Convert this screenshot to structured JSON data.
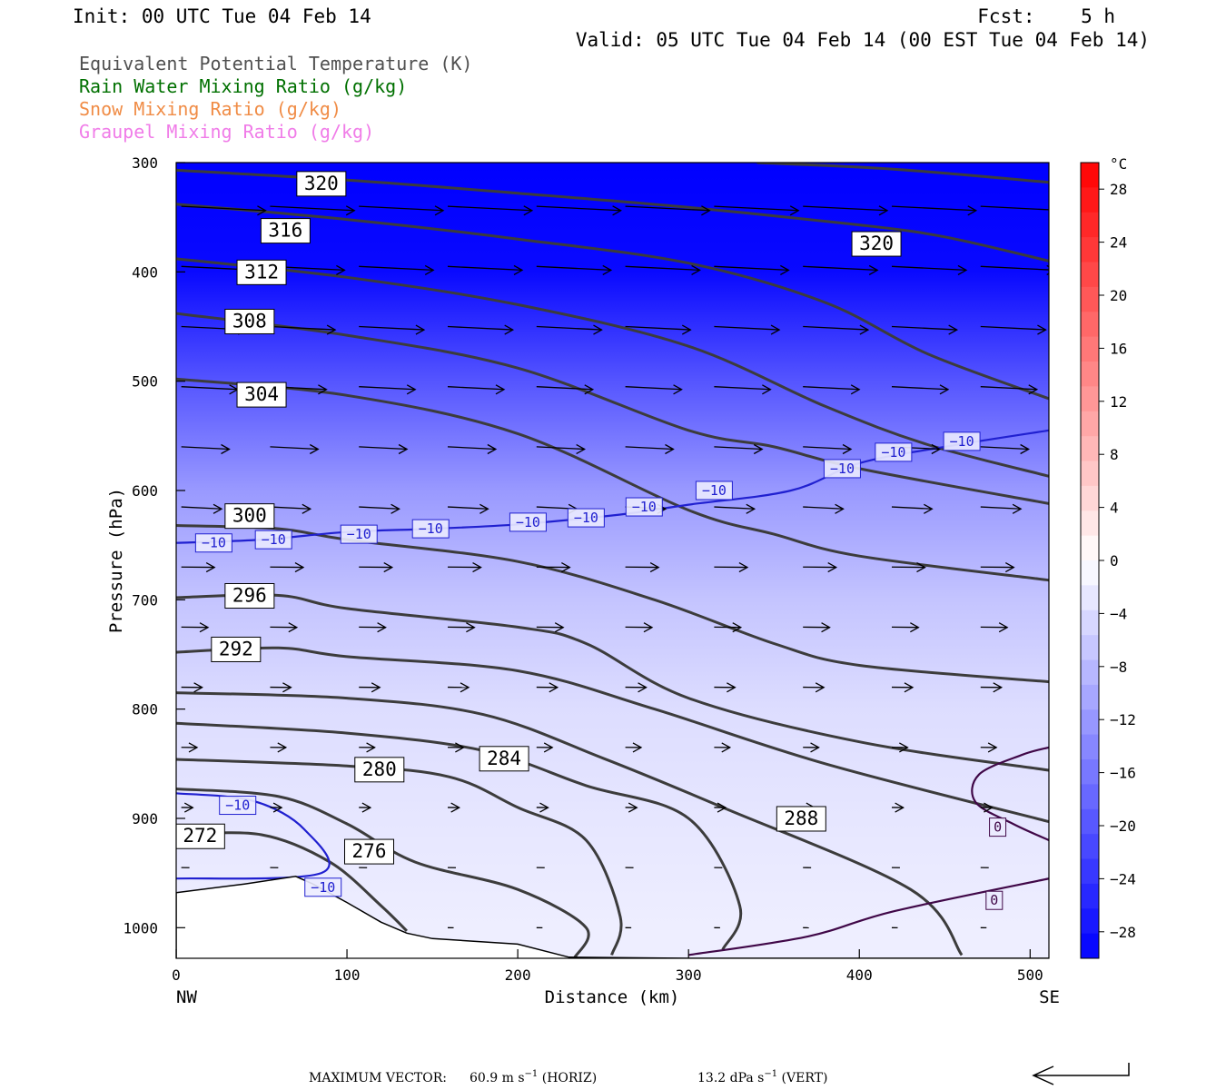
{
  "header": {
    "init": "Init: 00 UTC Tue 04 Feb 14",
    "fcst": "Fcst:    5 h",
    "valid": "Valid: 05 UTC Tue 04 Feb 14 (00 EST Tue 04 Feb 14)"
  },
  "legend": [
    {
      "label": "Equivalent Potential Temperature (K)",
      "color": "#505050"
    },
    {
      "label": "Rain Water Mixing Ratio (g/kg)",
      "color": "#007000"
    },
    {
      "label": "Snow Mixing Ratio (g/kg)",
      "color": "#f08c46"
    },
    {
      "label": "Graupel Mixing Ratio (g/kg)",
      "color": "#f07ce8"
    }
  ],
  "chart_data": {
    "type": "contour",
    "xlabel": "Distance (km)",
    "ylabel": "Pressure (hPa)",
    "xlim": [
      0,
      511
    ],
    "ylim": [
      1028,
      300
    ],
    "x_ticks": [
      0,
      100,
      200,
      300,
      400,
      500
    ],
    "y_ticks": [
      300,
      400,
      500,
      600,
      700,
      800,
      900,
      1000
    ],
    "x_end_labels": {
      "left": "NW",
      "right": "SE"
    },
    "colorbar": {
      "unit": "°C",
      "tick_values": [
        28,
        24,
        20,
        16,
        12,
        8,
        4,
        0,
        -4,
        -8,
        -12,
        -16,
        -20,
        -24,
        -28
      ],
      "tick_labels": [
        "28",
        "24",
        "20",
        "16",
        "12",
        "8",
        "4",
        "0",
        "−4",
        "−8",
        "−12",
        "−16",
        "−20",
        "−24",
        "−28"
      ]
    },
    "temperature_field": [
      {
        "p": 300,
        "t": -30
      },
      {
        "p": 400,
        "t": -29
      },
      {
        "p": 500,
        "t": -20
      },
      {
        "p": 600,
        "t": -12
      },
      {
        "p": 700,
        "t": -7
      },
      {
        "p": 800,
        "t": -4
      },
      {
        "p": 900,
        "t": -3
      },
      {
        "p": 1000,
        "t": -2
      }
    ],
    "theta_e_contours": [
      {
        "label": "320",
        "points": [
          [
            0,
            307
          ],
          [
            100,
            316
          ],
          [
            200,
            328
          ],
          [
            300,
            341
          ],
          [
            400,
            357
          ],
          [
            450,
            368
          ],
          [
            511,
            390
          ]
        ],
        "label_at": [
          85,
          319
        ]
      },
      {
        "label": "320",
        "points": [
          [
            340,
            300
          ],
          [
            420,
            306
          ],
          [
            511,
            318
          ]
        ],
        "label_at": [
          410,
          374
        ]
      },
      {
        "label": "316",
        "points": [
          [
            0,
            338
          ],
          [
            100,
            352
          ],
          [
            200,
            370
          ],
          [
            300,
            392
          ],
          [
            380,
            428
          ],
          [
            440,
            475
          ],
          [
            511,
            516
          ]
        ],
        "label_at": [
          64,
          362
        ]
      },
      {
        "label": "312",
        "points": [
          [
            0,
            388
          ],
          [
            100,
            405
          ],
          [
            200,
            430
          ],
          [
            300,
            468
          ],
          [
            380,
            523
          ],
          [
            440,
            558
          ],
          [
            511,
            587
          ]
        ],
        "label_at": [
          50,
          400
        ]
      },
      {
        "label": "308",
        "points": [
          [
            0,
            438
          ],
          [
            100,
            458
          ],
          [
            200,
            488
          ],
          [
            300,
            545
          ],
          [
            350,
            560
          ],
          [
            400,
            580
          ],
          [
            511,
            612
          ]
        ],
        "label_at": [
          43,
          445
        ]
      },
      {
        "label": "304",
        "points": [
          [
            0,
            498
          ],
          [
            100,
            513
          ],
          [
            200,
            548
          ],
          [
            300,
            618
          ],
          [
            350,
            640
          ],
          [
            400,
            660
          ],
          [
            511,
            682
          ]
        ],
        "label_at": [
          50,
          512
        ]
      },
      {
        "label": "300",
        "points": [
          [
            0,
            632
          ],
          [
            60,
            635
          ],
          [
            100,
            645
          ],
          [
            200,
            665
          ],
          [
            280,
            700
          ],
          [
            350,
            740
          ],
          [
            400,
            760
          ],
          [
            511,
            775
          ]
        ],
        "label_at": [
          43,
          623
        ]
      },
      {
        "label": "296",
        "points": [
          [
            0,
            698
          ],
          [
            60,
            696
          ],
          [
            100,
            708
          ],
          [
            200,
            725
          ],
          [
            240,
            740
          ],
          [
            300,
            790
          ],
          [
            400,
            830
          ],
          [
            511,
            856
          ]
        ],
        "label_at": [
          43,
          696
        ]
      },
      {
        "label": "292",
        "points": [
          [
            0,
            748
          ],
          [
            60,
            744
          ],
          [
            100,
            752
          ],
          [
            200,
            765
          ],
          [
            280,
            800
          ],
          [
            380,
            850
          ],
          [
            511,
            903
          ]
        ],
        "label_at": [
          35,
          745
        ]
      },
      {
        "label": "288",
        "points": [
          [
            0,
            785
          ],
          [
            100,
            790
          ],
          [
            180,
            805
          ],
          [
            250,
            845
          ],
          [
            320,
            890
          ],
          [
            430,
            965
          ],
          [
            460,
            1025
          ]
        ],
        "label_at": [
          366,
          900
        ]
      },
      {
        "label": "284",
        "points": [
          [
            0,
            813
          ],
          [
            100,
            822
          ],
          [
            180,
            838
          ],
          [
            240,
            870
          ],
          [
            300,
            900
          ],
          [
            330,
            980
          ],
          [
            320,
            1020
          ]
        ],
        "label_at": [
          192,
          845
        ]
      },
      {
        "label": "280",
        "points": [
          [
            0,
            846
          ],
          [
            100,
            852
          ],
          [
            160,
            862
          ],
          [
            200,
            890
          ],
          [
            240,
            920
          ],
          [
            260,
            990
          ],
          [
            255,
            1025
          ]
        ],
        "label_at": [
          119,
          855
        ]
      },
      {
        "label": "276",
        "points": [
          [
            0,
            873
          ],
          [
            60,
            880
          ],
          [
            100,
            905
          ],
          [
            140,
            940
          ],
          [
            200,
            965
          ],
          [
            240,
            1000
          ],
          [
            233,
            1028
          ]
        ],
        "label_at": [
          113,
          930
        ]
      },
      {
        "label": "272",
        "points": [
          [
            0,
            915
          ],
          [
            50,
            915
          ],
          [
            90,
            940
          ],
          [
            120,
            980
          ],
          [
            135,
            1003
          ]
        ],
        "label_at": [
          14,
          916
        ]
      }
    ],
    "temperature_contours": [
      {
        "label": "−10",
        "color": "#2020d0",
        "points": [
          [
            0,
            648
          ],
          [
            50,
            645
          ],
          [
            100,
            638
          ],
          [
            150,
            635
          ],
          [
            200,
            631
          ],
          [
            260,
            622
          ],
          [
            300,
            613
          ],
          [
            360,
            600
          ],
          [
            400,
            575
          ],
          [
            450,
            560
          ],
          [
            511,
            545
          ]
        ],
        "label_at": [
          [
            22,
            648
          ],
          [
            57,
            645
          ],
          [
            107,
            640
          ],
          [
            149,
            635
          ],
          [
            206,
            629
          ],
          [
            240,
            625
          ],
          [
            274,
            615
          ],
          [
            315,
            600
          ],
          [
            390,
            580
          ],
          [
            420,
            565
          ],
          [
            460,
            555
          ]
        ]
      },
      {
        "label": "−10",
        "color": "#2020d0",
        "points": [
          [
            0,
            877
          ],
          [
            45,
            884
          ],
          [
            75,
            910
          ],
          [
            85,
            950
          ],
          [
            0,
            955
          ]
        ],
        "label_at": [
          [
            36,
            888
          ],
          [
            86,
            963
          ]
        ]
      },
      {
        "label": "0",
        "color": "#400848",
        "points": [
          [
            300,
            1025
          ],
          [
            370,
            1008
          ],
          [
            420,
            985
          ],
          [
            511,
            955
          ]
        ],
        "label_at": [
          [
            479,
            975
          ]
        ]
      },
      {
        "label": "0",
        "color": "#400848",
        "points": [
          [
            511,
            835
          ],
          [
            495,
            842
          ],
          [
            470,
            860
          ],
          [
            468,
            885
          ],
          [
            490,
            905
          ],
          [
            511,
            920
          ]
        ],
        "label_at": [
          [
            481,
            908
          ]
        ]
      }
    ],
    "terrain": [
      [
        0,
        968
      ],
      [
        40,
        960
      ],
      [
        70,
        953
      ],
      [
        80,
        960
      ],
      [
        100,
        977
      ],
      [
        120,
        995
      ],
      [
        135,
        1005
      ],
      [
        150,
        1010
      ],
      [
        200,
        1015
      ],
      [
        230,
        1027
      ],
      [
        300,
        1028
      ],
      [
        511,
        1028
      ]
    ],
    "wind_vector_note": "Wind vectors in cross-section plane",
    "footer": {
      "label": "MAXIMUM VECTOR:",
      "horiz": "60.9 m s",
      "horiz_exp": "−1",
      "horiz_tail": " (HORIZ)",
      "vert": "13.2 dPa s",
      "vert_exp": "−1",
      "vert_tail": " (VERT)"
    }
  }
}
